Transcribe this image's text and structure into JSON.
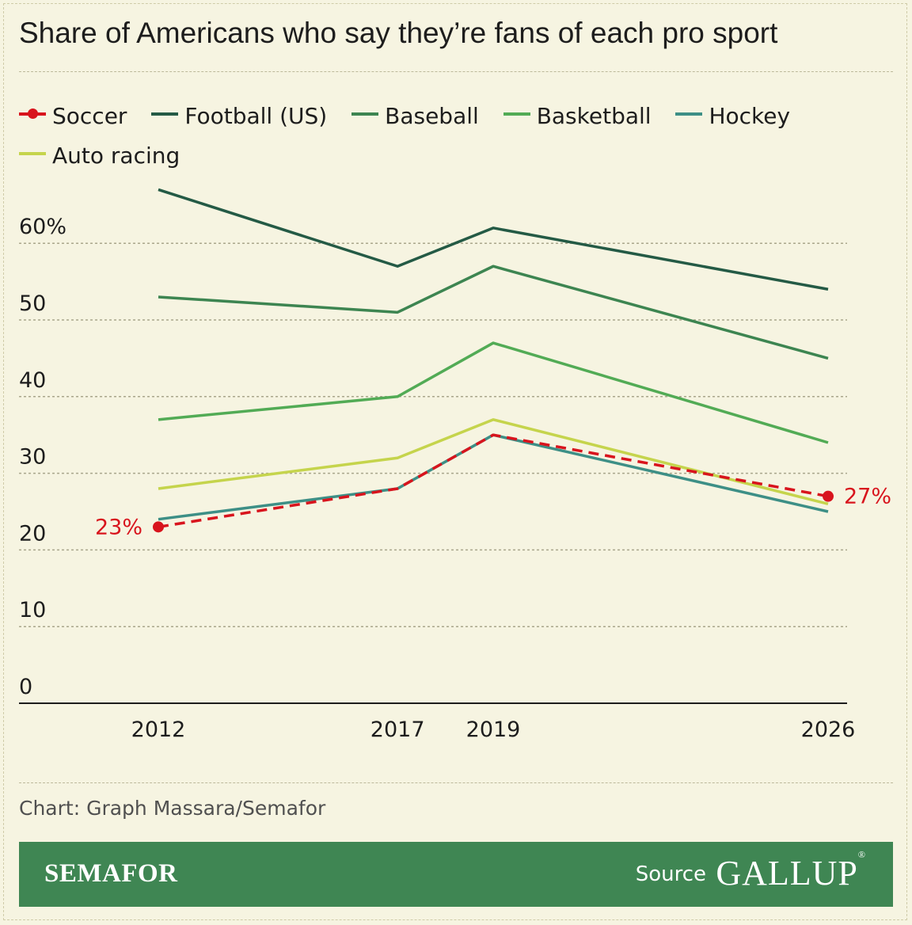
{
  "title": "Share of Americans who say they’re fans of each pro sport",
  "credit": "Chart: Graph Massara/Semafor",
  "footer": {
    "brand": "SEMAFOR",
    "source_label": "Source",
    "source_name": "GALLUP",
    "source_mark": "®",
    "background": "#3f8653"
  },
  "chart_data": {
    "type": "line",
    "x": [
      2012,
      2017,
      2019,
      2026
    ],
    "x_tick_labels": [
      "2012",
      "2017",
      "2019",
      "2026"
    ],
    "y_ticks": [
      0,
      10,
      20,
      30,
      40,
      50,
      60
    ],
    "y_tick_labels": [
      "0",
      "10",
      "20",
      "30",
      "40",
      "50",
      "60%"
    ],
    "ylim": [
      0,
      60
    ],
    "grid": true,
    "legend": "top",
    "series": [
      {
        "name": "Soccer",
        "color": "#d8141d",
        "dashed": true,
        "markers": true,
        "values": [
          23,
          28,
          35,
          27
        ]
      },
      {
        "name": "Football (US)",
        "color": "#245a45",
        "values": [
          67,
          57,
          62,
          54
        ]
      },
      {
        "name": "Baseball",
        "color": "#3d8551",
        "values": [
          53,
          51,
          57,
          45
        ]
      },
      {
        "name": "Basketball",
        "color": "#52ab55",
        "values": [
          37,
          40,
          47,
          34
        ]
      },
      {
        "name": "Hockey",
        "color": "#3d8f86",
        "values": [
          24,
          28,
          35,
          25
        ]
      },
      {
        "name": "Auto racing",
        "color": "#c5d44c",
        "values": [
          28,
          32,
          37,
          26
        ]
      }
    ],
    "annotations": [
      {
        "series": "Soccer",
        "x": 2012,
        "label": "23%",
        "side": "left"
      },
      {
        "series": "Soccer",
        "x": 2026,
        "label": "27%",
        "side": "right"
      }
    ]
  }
}
